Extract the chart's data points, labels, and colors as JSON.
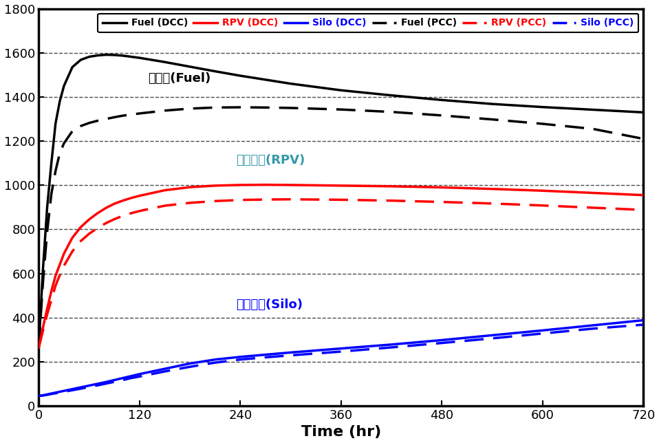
{
  "title": "",
  "xlabel": "Time (hr)",
  "ylabel": "",
  "xlim": [
    0,
    720
  ],
  "ylim": [
    0,
    1800
  ],
  "xticks": [
    0,
    120,
    240,
    360,
    480,
    600,
    720
  ],
  "yticks": [
    0,
    200,
    400,
    600,
    800,
    1000,
    1200,
    1400,
    1600,
    1800
  ],
  "legend": [
    {
      "label": "Fuel (DCC)",
      "color": "black",
      "ls": "solid"
    },
    {
      "label": "RPV (DCC)",
      "color": "red",
      "ls": "solid"
    },
    {
      "label": "Silo (DCC)",
      "color": "blue",
      "ls": "solid"
    },
    {
      "label": "Fuel (PCC)",
      "color": "black",
      "ls": "dashed"
    },
    {
      "label": "RPV (PCC)",
      "color": "red",
      "ls": "dashed"
    },
    {
      "label": "Silo (PCC)",
      "color": "blue",
      "ls": "dashed"
    }
  ],
  "ann_fuel_text": "핵연료(Fuel)",
  "ann_fuel_x": 130,
  "ann_fuel_y": 1455,
  "ann_fuel_color": "black",
  "ann_rpv_text": "압력용기(RPV)",
  "ann_rpv_x": 235,
  "ann_rpv_y": 1085,
  "ann_rpv_color": "#3399aa",
  "ann_silo_text": "콘크리트(Silo)",
  "ann_silo_x": 235,
  "ann_silo_y": 430,
  "ann_silo_color": "blue",
  "fuel_dcc_x": [
    0,
    5,
    10,
    15,
    20,
    25,
    30,
    40,
    50,
    60,
    70,
    80,
    90,
    100,
    110,
    120,
    150,
    180,
    210,
    240,
    270,
    300,
    360,
    420,
    480,
    540,
    600,
    660,
    720
  ],
  "fuel_dcc_y": [
    270,
    620,
    900,
    1100,
    1280,
    1380,
    1450,
    1535,
    1568,
    1582,
    1588,
    1591,
    1590,
    1587,
    1582,
    1577,
    1558,
    1537,
    1516,
    1496,
    1478,
    1460,
    1430,
    1407,
    1386,
    1368,
    1354,
    1342,
    1330
  ],
  "fuel_pcc_x": [
    0,
    5,
    10,
    15,
    20,
    25,
    30,
    40,
    50,
    60,
    70,
    80,
    90,
    100,
    110,
    120,
    150,
    180,
    210,
    240,
    270,
    300,
    360,
    420,
    480,
    540,
    600,
    660,
    720
  ],
  "fuel_pcc_y": [
    270,
    560,
    790,
    960,
    1065,
    1145,
    1190,
    1245,
    1268,
    1282,
    1292,
    1300,
    1308,
    1315,
    1320,
    1325,
    1338,
    1347,
    1352,
    1353,
    1352,
    1350,
    1343,
    1332,
    1316,
    1298,
    1278,
    1255,
    1210
  ],
  "rpv_dcc_x": [
    0,
    5,
    10,
    15,
    20,
    25,
    30,
    40,
    50,
    60,
    70,
    80,
    90,
    100,
    110,
    120,
    150,
    180,
    210,
    240,
    270,
    300,
    360,
    420,
    480,
    540,
    600,
    660,
    720
  ],
  "rpv_dcc_y": [
    265,
    355,
    440,
    520,
    590,
    640,
    690,
    762,
    810,
    845,
    873,
    897,
    916,
    930,
    942,
    952,
    977,
    991,
    998,
    1001,
    1002,
    1001,
    998,
    995,
    990,
    983,
    975,
    965,
    955
  ],
  "rpv_pcc_x": [
    0,
    5,
    10,
    15,
    20,
    25,
    30,
    40,
    50,
    60,
    70,
    80,
    90,
    100,
    110,
    120,
    150,
    180,
    210,
    240,
    270,
    300,
    360,
    420,
    480,
    540,
    600,
    660,
    720
  ],
  "rpv_pcc_y": [
    265,
    340,
    415,
    480,
    545,
    592,
    635,
    700,
    747,
    780,
    806,
    828,
    846,
    861,
    873,
    883,
    907,
    920,
    928,
    933,
    935,
    936,
    934,
    930,
    924,
    917,
    908,
    898,
    888
  ],
  "silo_dcc_x": [
    0,
    5,
    10,
    15,
    20,
    30,
    40,
    50,
    60,
    70,
    80,
    90,
    100,
    110,
    120,
    150,
    180,
    210,
    240,
    270,
    300,
    360,
    420,
    480,
    540,
    600,
    660,
    720
  ],
  "silo_dcc_y": [
    45,
    48,
    52,
    56,
    60,
    68,
    76,
    84,
    92,
    100,
    108,
    117,
    126,
    135,
    144,
    168,
    192,
    210,
    222,
    232,
    242,
    260,
    278,
    298,
    320,
    342,
    365,
    388
  ],
  "silo_pcc_x": [
    0,
    5,
    10,
    15,
    20,
    30,
    40,
    50,
    60,
    70,
    80,
    90,
    100,
    110,
    120,
    150,
    180,
    210,
    240,
    270,
    300,
    360,
    420,
    480,
    540,
    600,
    660,
    720
  ],
  "silo_pcc_y": [
    45,
    47,
    50,
    54,
    57,
    64,
    71,
    78,
    86,
    93,
    101,
    109,
    117,
    126,
    133,
    156,
    177,
    196,
    210,
    220,
    229,
    246,
    265,
    285,
    306,
    328,
    350,
    368
  ]
}
